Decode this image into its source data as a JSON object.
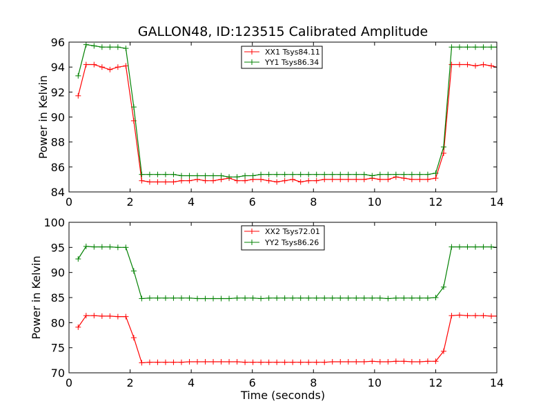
{
  "figure": {
    "title": "GALLON48, ID:123515 Calibrated Amplitude",
    "xlabel": "Time (seconds)"
  },
  "chart_data": [
    {
      "type": "line",
      "title": "GALLON48, ID:123515 Calibrated Amplitude",
      "xlabel": "",
      "ylabel": "Power in Kelvin",
      "xlim": [
        0,
        14
      ],
      "ylim": [
        84,
        96
      ],
      "xticks": [
        0,
        2,
        4,
        6,
        8,
        10,
        12,
        14
      ],
      "yticks": [
        84,
        86,
        88,
        90,
        92,
        94,
        96
      ],
      "grid": false,
      "legend_position": "top-center",
      "x": [
        0.3,
        0.56,
        0.82,
        1.08,
        1.34,
        1.6,
        1.86,
        2.12,
        2.38,
        2.64,
        2.9,
        3.16,
        3.42,
        3.68,
        3.94,
        4.2,
        4.46,
        4.72,
        4.98,
        5.24,
        5.5,
        5.76,
        6.02,
        6.28,
        6.54,
        6.8,
        7.06,
        7.32,
        7.58,
        7.84,
        8.1,
        8.36,
        8.62,
        8.88,
        9.14,
        9.4,
        9.66,
        9.92,
        10.18,
        10.44,
        10.7,
        10.96,
        11.22,
        11.48,
        11.74,
        12.0,
        12.26,
        12.52,
        12.78,
        13.04,
        13.3,
        13.56,
        13.82,
        14.0
      ],
      "series": [
        {
          "name": "XX1 Tsys84.11",
          "color": "#ff0000",
          "values": [
            91.7,
            94.2,
            94.2,
            94.0,
            93.8,
            94.0,
            94.1,
            89.7,
            84.9,
            84.8,
            84.8,
            84.8,
            84.8,
            84.9,
            84.9,
            85.0,
            84.9,
            84.9,
            85.0,
            85.1,
            84.9,
            84.9,
            85.0,
            85.0,
            84.9,
            84.8,
            84.9,
            85.0,
            84.8,
            84.9,
            84.9,
            85.0,
            85.0,
            85.0,
            85.0,
            85.0,
            85.0,
            85.1,
            85.0,
            85.0,
            85.2,
            85.1,
            85.0,
            85.0,
            85.0,
            85.1,
            87.1,
            94.2,
            94.2,
            94.2,
            94.1,
            94.2,
            94.1,
            94.0
          ]
        },
        {
          "name": "YY1 Tsys86.34",
          "color": "#008000",
          "values": [
            93.3,
            95.8,
            95.7,
            95.6,
            95.6,
            95.6,
            95.5,
            90.8,
            85.4,
            85.4,
            85.4,
            85.4,
            85.4,
            85.3,
            85.3,
            85.3,
            85.3,
            85.3,
            85.3,
            85.2,
            85.2,
            85.3,
            85.3,
            85.4,
            85.4,
            85.4,
            85.4,
            85.4,
            85.4,
            85.4,
            85.4,
            85.4,
            85.4,
            85.4,
            85.4,
            85.4,
            85.4,
            85.3,
            85.4,
            85.4,
            85.4,
            85.4,
            85.4,
            85.4,
            85.4,
            85.5,
            87.6,
            95.6,
            95.6,
            95.6,
            95.6,
            95.6,
            95.6,
            95.6
          ]
        }
      ]
    },
    {
      "type": "line",
      "title": "",
      "xlabel": "Time (seconds)",
      "ylabel": "Power in Kelvin",
      "xlim": [
        0,
        14
      ],
      "ylim": [
        70,
        100
      ],
      "xticks": [
        0,
        2,
        4,
        6,
        8,
        10,
        12,
        14
      ],
      "yticks": [
        70,
        75,
        80,
        85,
        90,
        95,
        100
      ],
      "grid": false,
      "legend_position": "top-center",
      "x": [
        0.3,
        0.56,
        0.82,
        1.08,
        1.34,
        1.6,
        1.86,
        2.12,
        2.38,
        2.64,
        2.9,
        3.16,
        3.42,
        3.68,
        3.94,
        4.2,
        4.46,
        4.72,
        4.98,
        5.24,
        5.5,
        5.76,
        6.02,
        6.28,
        6.54,
        6.8,
        7.06,
        7.32,
        7.58,
        7.84,
        8.1,
        8.36,
        8.62,
        8.88,
        9.14,
        9.4,
        9.66,
        9.92,
        10.18,
        10.44,
        10.7,
        10.96,
        11.22,
        11.48,
        11.74,
        12.0,
        12.26,
        12.52,
        12.78,
        13.04,
        13.3,
        13.56,
        13.82,
        14.0
      ],
      "series": [
        {
          "name": "XX2 Tsys72.01",
          "color": "#ff0000",
          "values": [
            79.1,
            81.4,
            81.4,
            81.3,
            81.3,
            81.2,
            81.2,
            77.0,
            72.0,
            72.1,
            72.1,
            72.1,
            72.1,
            72.1,
            72.2,
            72.2,
            72.2,
            72.2,
            72.2,
            72.2,
            72.2,
            72.1,
            72.1,
            72.1,
            72.1,
            72.1,
            72.1,
            72.1,
            72.1,
            72.1,
            72.1,
            72.1,
            72.2,
            72.2,
            72.2,
            72.2,
            72.2,
            72.3,
            72.2,
            72.2,
            72.3,
            72.3,
            72.2,
            72.2,
            72.3,
            72.3,
            74.3,
            81.4,
            81.5,
            81.4,
            81.4,
            81.4,
            81.3,
            81.3
          ]
        },
        {
          "name": "YY2 Tsys86.26",
          "color": "#008000",
          "values": [
            92.7,
            95.2,
            95.1,
            95.1,
            95.1,
            95.0,
            95.0,
            90.3,
            84.8,
            84.9,
            84.9,
            84.9,
            84.9,
            84.9,
            84.9,
            84.8,
            84.8,
            84.8,
            84.8,
            84.8,
            84.9,
            84.9,
            84.9,
            84.8,
            84.9,
            84.9,
            84.9,
            84.9,
            84.9,
            84.9,
            84.9,
            84.9,
            84.9,
            84.9,
            84.9,
            84.9,
            84.9,
            84.9,
            84.9,
            84.8,
            84.9,
            84.9,
            84.9,
            84.9,
            84.9,
            85.0,
            87.1,
            95.1,
            95.1,
            95.1,
            95.1,
            95.1,
            95.1,
            95.0
          ]
        }
      ]
    }
  ]
}
